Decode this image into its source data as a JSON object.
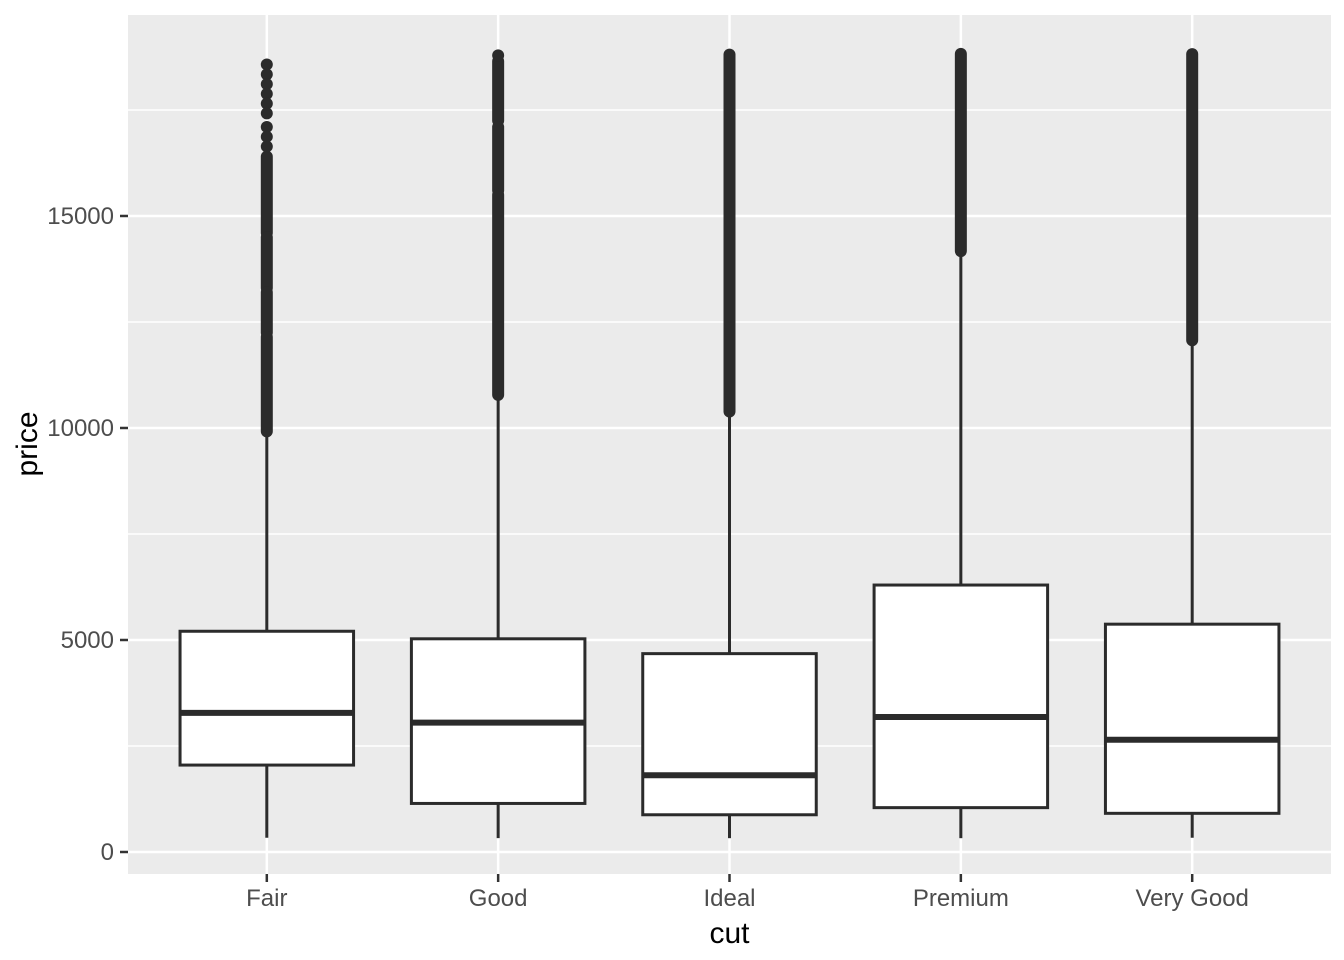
{
  "chart_data": {
    "type": "boxplot",
    "title": "",
    "xlabel": "cut",
    "ylabel": "price",
    "categories": [
      "Fair",
      "Good",
      "Ideal",
      "Premium",
      "Very Good"
    ],
    "y_ticks": [
      0,
      5000,
      10000,
      15000
    ],
    "y_tick_labels": [
      "0",
      "5000",
      "10000",
      "15000"
    ],
    "y_minor_ticks": [
      2500,
      7500,
      12500,
      17500
    ],
    "ylim": [
      -519,
      19740
    ],
    "xlim": [
      0.4,
      5.6
    ],
    "box_width_units": 0.75,
    "grid": "on",
    "legend": "none",
    "series": [
      {
        "category": "Fair",
        "lower_whisker": 337,
        "q1": 2050,
        "median": 3282,
        "q3": 5206,
        "upper_whisker": 9899,
        "outlier_dots": [
          18574,
          18340,
          18110,
          17880,
          17650,
          17420,
          17100,
          16870,
          16640
        ],
        "outlier_segments": [
          [
            16400,
            14600
          ],
          [
            14500,
            13300
          ],
          [
            13200,
            12250
          ],
          [
            12150,
            9920
          ]
        ]
      },
      {
        "category": "Good",
        "lower_whisker": 327,
        "q1": 1145,
        "median": 3050,
        "q3": 5028,
        "upper_whisker": 10700,
        "outlier_dots": [
          18788
        ],
        "outlier_segments": [
          [
            18650,
            17250
          ],
          [
            17100,
            15600
          ],
          [
            15500,
            10780
          ]
        ]
      },
      {
        "category": "Ideal",
        "lower_whisker": 326,
        "q1": 878,
        "median": 1810,
        "q3": 4678,
        "upper_whisker": 10350,
        "outlier_dots": [],
        "outlier_segments": [
          [
            18806,
            10390
          ]
        ]
      },
      {
        "category": "Premium",
        "lower_whisker": 326,
        "q1": 1046,
        "median": 3185,
        "q3": 6296,
        "upper_whisker": 14140,
        "outlier_dots": [],
        "outlier_segments": [
          [
            18823,
            14170
          ]
        ]
      },
      {
        "category": "Very Good",
        "lower_whisker": 336,
        "q1": 912,
        "median": 2648,
        "q3": 5373,
        "upper_whisker": 12040,
        "outlier_dots": [],
        "outlier_segments": [
          [
            18818,
            12070
          ]
        ]
      }
    ],
    "style": {
      "panel_bg": "#EBEBEB",
      "grid_color": "#FFFFFF",
      "geom_color": "#2B2B2B",
      "box_fill": "#FFFFFF",
      "tick_color": "#333333",
      "tick_label_color": "#4D4D4D",
      "axis_title_color": "#000000"
    }
  }
}
